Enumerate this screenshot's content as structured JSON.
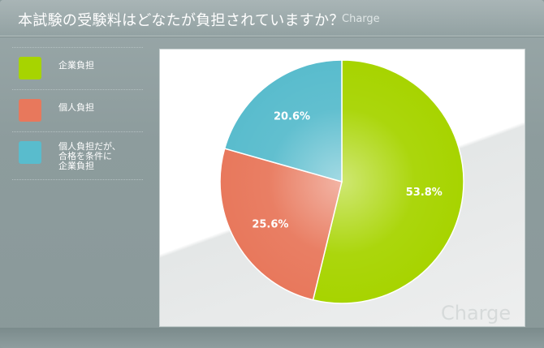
{
  "title": "本試験の受験料はどなたが負担されていますか？",
  "brand": "Charge",
  "watermark": "Charge",
  "legend": [
    {
      "label": "企業負担",
      "color": "#a7d400"
    },
    {
      "label": "個人負担",
      "color": "#e8785c"
    },
    {
      "label": "個人負担だが、合格を条件に企業負担",
      "line1": "個人負担だが、",
      "line2": "合格を条件に",
      "line3": "企業負担",
      "color": "#59bccd"
    }
  ],
  "chart_data": {
    "type": "pie",
    "title": "本試験の受験料はどなたが負担されていますか？",
    "slices": [
      {
        "name": "企業負担",
        "value": 53.8,
        "label": "53.8%",
        "color": "#a7d400"
      },
      {
        "name": "個人負担",
        "value": 25.6,
        "label": "25.6%",
        "color": "#e8785c"
      },
      {
        "name": "個人負担だが、合格を条件に企業負担",
        "value": 20.6,
        "label": "20.6%",
        "color": "#59bccd"
      }
    ],
    "start_angle_deg": 0,
    "direction": "clockwise",
    "legend_position": "left"
  }
}
